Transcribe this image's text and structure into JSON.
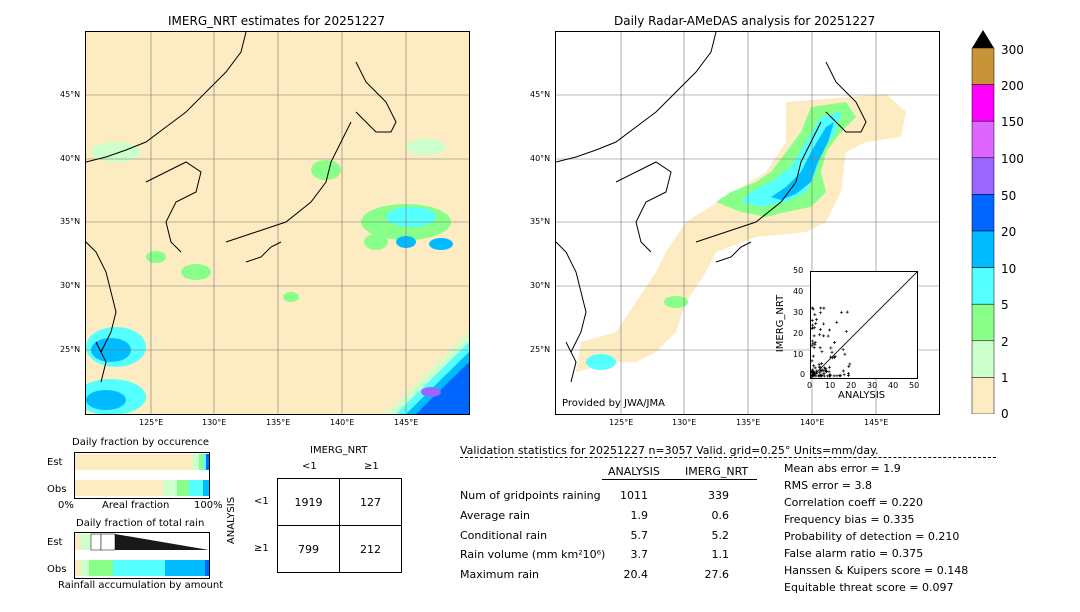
{
  "left_map": {
    "title": "IMERG_NRT estimates for 20251227",
    "lat_labels": [
      "45°N",
      "40°N",
      "35°N",
      "30°N",
      "25°N"
    ],
    "lon_labels": [
      "125°E",
      "130°E",
      "135°E",
      "140°E",
      "145°E"
    ]
  },
  "right_map": {
    "title": "Daily Radar-AMeDAS analysis for 20251227",
    "lat_labels": [
      "45°N",
      "40°N",
      "35°N",
      "30°N",
      "25°N"
    ],
    "lon_labels": [
      "125°E",
      "130°E",
      "135°E",
      "140°E",
      "145°E"
    ],
    "credit": "Provided by JWA/JMA"
  },
  "inset_scatter": {
    "ylabel": "IMERG_NRT",
    "xlabel": "ANALYSIS",
    "ticks": [
      "0",
      "10",
      "20",
      "30",
      "40",
      "50"
    ]
  },
  "colorbar": {
    "labels": [
      "300",
      "200",
      "150",
      "100",
      "50",
      "20",
      "10",
      "5",
      "2",
      "1",
      "0"
    ],
    "colors": [
      "#c8943a",
      "#ff00ff",
      "#dd66ff",
      "#9966ff",
      "#0066ff",
      "#00bbff",
      "#55ffff",
      "#88ff88",
      "#ccffcc",
      "#fdebc2"
    ]
  },
  "fraction_occurrence": {
    "title": "Daily fraction by occurence",
    "row_est": "Est",
    "row_obs": "Obs",
    "axis_left": "0%",
    "axis_mid": "Areal fraction",
    "axis_right": "100%"
  },
  "fraction_rain": {
    "title": "Daily fraction of total rain",
    "row_est": "Est",
    "row_obs": "Obs",
    "footer": "Rainfall accumulation by amount"
  },
  "contingency": {
    "header": "IMERG_NRT",
    "col_lt": "<1",
    "col_ge": "≥1",
    "side": "ANALYSIS",
    "row_lt": "<1",
    "row_ge": "≥1",
    "v11": "1919",
    "v12": "127",
    "v21": "799",
    "v22": "212"
  },
  "validation": {
    "header": "Validation statistics for 20251227  n=3057 Valid. grid=0.25° Units=mm/day.",
    "col_analysis": "ANALYSIS",
    "col_imerg": "IMERG_NRT",
    "rows": [
      {
        "label": "Num of gridpoints raining",
        "a": "1011",
        "b": "339"
      },
      {
        "label": "Average rain",
        "a": "1.9",
        "b": "0.6"
      },
      {
        "label": "Conditional rain",
        "a": "5.7",
        "b": "5.2"
      },
      {
        "label": "Rain volume (mm km²10⁶)",
        "a": "3.7",
        "b": "1.1"
      },
      {
        "label": "Maximum rain",
        "a": "20.4",
        "b": "27.6"
      }
    ],
    "scores": [
      "Mean abs error =    1.9",
      "RMS error =    3.8",
      "Correlation coeff =  0.220",
      "Frequency bias =  0.335",
      "Probability of detection =  0.210",
      "False alarm ratio =  0.375",
      "Hanssen & Kuipers score =  0.148",
      "Equitable threat score =  0.097"
    ]
  }
}
